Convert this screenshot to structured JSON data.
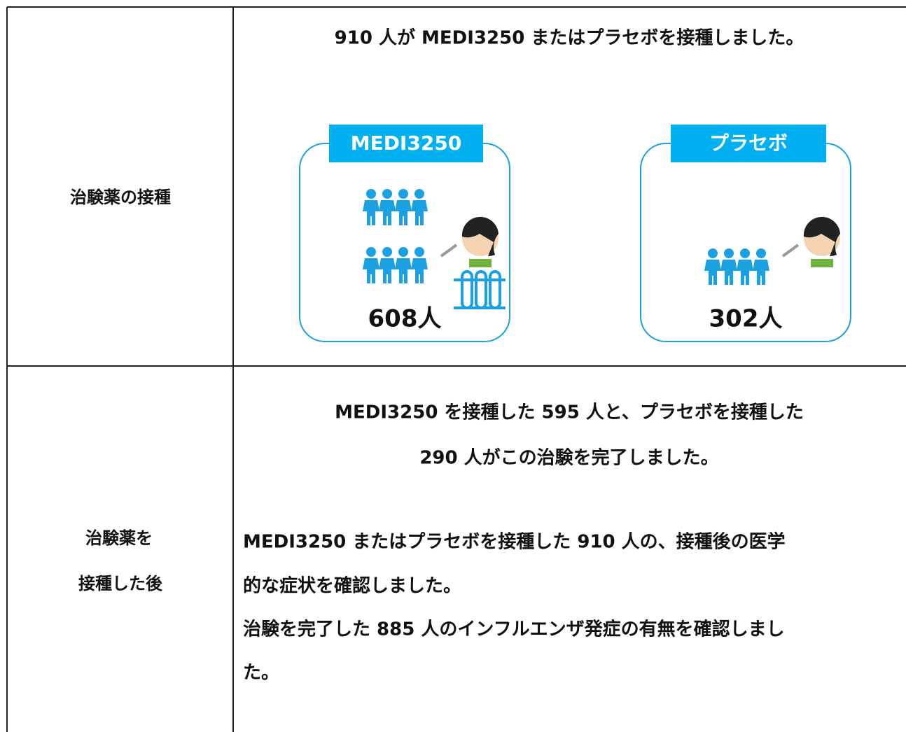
{
  "table": {
    "rows": [
      {
        "label": [
          "治験薬の接種"
        ],
        "title": "910 人が MEDI3250 またはプラセボを接種しました。",
        "groups": [
          {
            "name": "MEDI3250",
            "count": "608人"
          },
          {
            "name": "プラセボ",
            "count": "302人"
          }
        ]
      },
      {
        "label": [
          "治験薬を",
          "接種した後"
        ],
        "centered": [
          "MEDI3250 を接種した 595 人と、プラセボを接種した",
          "290 人がこの治験を完了しました。"
        ],
        "paragraphs": [
          "MEDI3250 またはプラセボを接種した 910 人の、接種後の医学",
          "的な症状を確認しました。",
          "治験を完了した 885 人のインフルエンザ発症の有無を確認しまし",
          "た。"
        ]
      }
    ]
  }
}
